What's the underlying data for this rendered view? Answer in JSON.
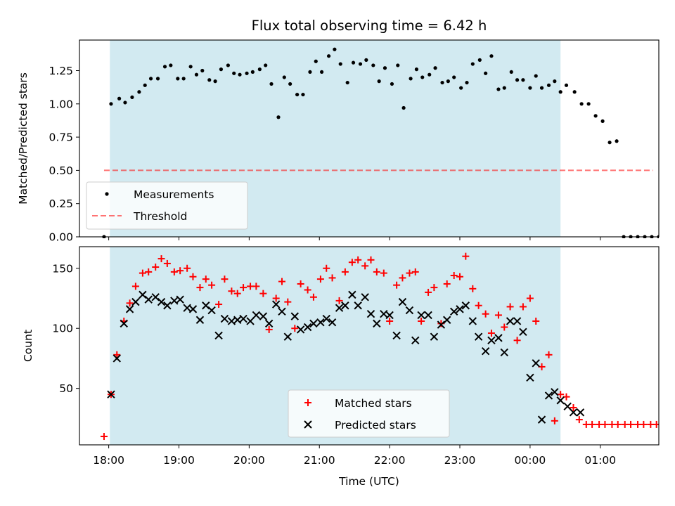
{
  "title": "Flux total observing time = 6.42 h",
  "colors": {
    "observing_span": "#add8e6",
    "measurement_marker": "#000000",
    "threshold_line": "#ff0000",
    "matched_marker": "#ff0000",
    "predicted_marker": "#000000"
  },
  "chart_data": [
    {
      "type": "scatter",
      "ylabel": "Matched/Predicted stars",
      "xlim": [
        "17:35",
        "01:50"
      ],
      "ylim": [
        0,
        1.48
      ],
      "yticks": [
        "0.00",
        "0.25",
        "0.50",
        "0.75",
        "1.00",
        "1.25"
      ],
      "grid": false,
      "legend_position": "lower-left",
      "shaded_span": {
        "start": "18:01",
        "end": "00:26"
      },
      "series": [
        {
          "name": "Measurements",
          "x": [
            "17:56",
            "18:02",
            "18:09",
            "18:14",
            "18:20",
            "18:26",
            "18:31",
            "18:36",
            "18:42",
            "18:48",
            "18:53",
            "18:59",
            "19:04",
            "19:10",
            "19:15",
            "19:20",
            "19:26",
            "19:31",
            "19:36",
            "19:42",
            "19:47",
            "19:52",
            "19:58",
            "20:03",
            "20:09",
            "20:14",
            "20:19",
            "20:25",
            "20:30",
            "20:35",
            "20:41",
            "20:46",
            "20:52",
            "20:57",
            "21:02",
            "21:08",
            "21:13",
            "21:18",
            "21:24",
            "21:29",
            "21:35",
            "21:40",
            "21:46",
            "21:51",
            "21:56",
            "22:02",
            "22:07",
            "22:12",
            "22:18",
            "22:23",
            "22:28",
            "22:34",
            "22:39",
            "22:45",
            "22:50",
            "22:55",
            "23:01",
            "23:06",
            "23:11",
            "23:17",
            "23:22",
            "23:27",
            "23:33",
            "23:38",
            "23:44",
            "23:49",
            "23:54",
            "24:00",
            "24:05",
            "24:10",
            "24:16",
            "24:21",
            "24:26",
            "24:31",
            "24:38",
            "24:44",
            "24:50",
            "24:56",
            "25:02",
            "25:08",
            "25:14",
            "25:20",
            "25:26",
            "25:32",
            "25:38",
            "25:44",
            "25:50"
          ],
          "y": [
            0.0,
            1.0,
            1.04,
            1.01,
            1.05,
            1.09,
            1.14,
            1.19,
            1.19,
            1.28,
            1.29,
            1.19,
            1.19,
            1.28,
            1.22,
            1.25,
            1.18,
            1.17,
            1.26,
            1.29,
            1.23,
            1.22,
            1.23,
            1.24,
            1.26,
            1.29,
            1.15,
            0.9,
            1.2,
            1.15,
            1.07,
            1.07,
            1.24,
            1.32,
            1.24,
            1.36,
            1.41,
            1.3,
            1.16,
            1.31,
            1.3,
            1.33,
            1.29,
            1.17,
            1.27,
            1.15,
            1.29,
            0.97,
            1.19,
            1.26,
            1.2,
            1.22,
            1.27,
            1.16,
            1.17,
            1.2,
            1.12,
            1.16,
            1.3,
            1.33,
            1.23,
            1.36,
            1.11,
            1.12,
            1.24,
            1.18,
            1.18,
            1.12,
            1.21,
            1.12,
            1.14,
            1.17,
            1.09,
            1.14,
            1.09,
            1.0,
            1.0,
            0.91,
            0.87,
            0.71,
            0.72,
            0.0,
            0.0,
            0.0,
            0.0,
            0.0,
            0.0
          ]
        },
        {
          "name": "Threshold",
          "x": [
            "17:56",
            "01:45"
          ],
          "y": [
            0.5,
            0.5
          ]
        }
      ]
    },
    {
      "type": "scatter",
      "xlabel": "Time (UTC)",
      "ylabel": "Count",
      "xlim": [
        "17:35",
        "01:50"
      ],
      "ylim": [
        3,
        168
      ],
      "yticks": [
        "50",
        "100",
        "150"
      ],
      "xticks": [
        "18:00",
        "19:00",
        "20:00",
        "21:00",
        "22:00",
        "23:00",
        "00:00",
        "01:00"
      ],
      "grid": false,
      "legend_position": "lower-center",
      "shaded_span": {
        "start": "18:01",
        "end": "00:26"
      },
      "series": [
        {
          "name": "Matched stars",
          "x": [
            "17:56",
            "18:02",
            "18:07",
            "18:13",
            "18:18",
            "18:23",
            "18:29",
            "18:34",
            "18:40",
            "18:45",
            "18:50",
            "18:56",
            "19:01",
            "19:07",
            "19:12",
            "19:18",
            "19:23",
            "19:28",
            "19:34",
            "19:39",
            "19:45",
            "19:50",
            "19:55",
            "20:01",
            "20:06",
            "20:12",
            "20:17",
            "20:23",
            "20:28",
            "20:33",
            "20:39",
            "20:44",
            "20:50",
            "20:55",
            "21:01",
            "21:06",
            "21:11",
            "21:17",
            "21:22",
            "21:28",
            "21:33",
            "21:39",
            "21:44",
            "21:49",
            "21:55",
            "22:00",
            "22:06",
            "22:11",
            "22:17",
            "22:22",
            "22:27",
            "22:33",
            "22:38",
            "22:44",
            "22:49",
            "22:55",
            "23:00",
            "23:05",
            "23:11",
            "23:16",
            "23:22",
            "23:27",
            "23:33",
            "23:38",
            "23:43",
            "23:49",
            "23:54",
            "24:00",
            "24:05",
            "24:10",
            "24:16",
            "24:21",
            "24:26",
            "24:31",
            "24:37",
            "24:42",
            "24:48",
            "24:53",
            "24:59",
            "25:04",
            "25:10",
            "25:15",
            "25:21",
            "25:26",
            "25:32",
            "25:37",
            "25:43",
            "25:48"
          ],
          "y": [
            10,
            45,
            78,
            106,
            121,
            135,
            146,
            147,
            151,
            158,
            154,
            147,
            148,
            150,
            143,
            134,
            141,
            136,
            120,
            141,
            131,
            129,
            134,
            135,
            135,
            129,
            99,
            125,
            139,
            122,
            100,
            137,
            132,
            126,
            141,
            150,
            142,
            123,
            147,
            155,
            157,
            152,
            157,
            147,
            146,
            106,
            136,
            142,
            146,
            147,
            106,
            130,
            134,
            104,
            137,
            144,
            143,
            160,
            133,
            119,
            112,
            96,
            111,
            101,
            118,
            90,
            118,
            125,
            106,
            68,
            78,
            23,
            45,
            43,
            34,
            24,
            20,
            20,
            20,
            20,
            20,
            20,
            20,
            20,
            20,
            20,
            20,
            20
          ]
        },
        {
          "name": "Predicted stars",
          "x": [
            "18:02",
            "18:07",
            "18:13",
            "18:18",
            "18:23",
            "18:29",
            "18:34",
            "18:40",
            "18:45",
            "18:50",
            "18:56",
            "19:01",
            "19:07",
            "19:12",
            "19:18",
            "19:23",
            "19:28",
            "19:34",
            "19:39",
            "19:45",
            "19:50",
            "19:55",
            "20:01",
            "20:06",
            "20:12",
            "20:17",
            "20:23",
            "20:28",
            "20:33",
            "20:39",
            "20:44",
            "20:50",
            "20:55",
            "21:01",
            "21:06",
            "21:11",
            "21:17",
            "21:22",
            "21:28",
            "21:33",
            "21:39",
            "21:44",
            "21:49",
            "21:55",
            "22:00",
            "22:06",
            "22:11",
            "22:17",
            "22:22",
            "22:27",
            "22:33",
            "22:38",
            "22:44",
            "22:49",
            "22:55",
            "23:00",
            "23:05",
            "23:11",
            "23:16",
            "23:22",
            "23:27",
            "23:33",
            "23:38",
            "23:43",
            "23:49",
            "23:54",
            "24:00",
            "24:05",
            "24:10",
            "24:16",
            "24:21",
            "24:26",
            "24:32",
            "24:37",
            "24:43"
          ],
          "y": [
            45,
            75,
            104,
            116,
            122,
            128,
            124,
            126,
            122,
            119,
            123,
            124,
            117,
            116,
            107,
            119,
            115,
            94,
            108,
            106,
            107,
            108,
            106,
            111,
            110,
            104,
            120,
            114,
            93,
            110,
            99,
            101,
            104,
            105,
            108,
            105,
            117,
            119,
            128,
            119,
            126,
            112,
            104,
            112,
            111,
            94,
            122,
            115,
            90,
            111,
            111,
            93,
            103,
            107,
            114,
            116,
            119,
            106,
            93,
            81,
            90,
            92,
            80,
            106,
            106,
            97,
            59,
            71,
            24,
            44,
            47,
            40,
            35,
            30,
            30
          ]
        }
      ]
    }
  ]
}
